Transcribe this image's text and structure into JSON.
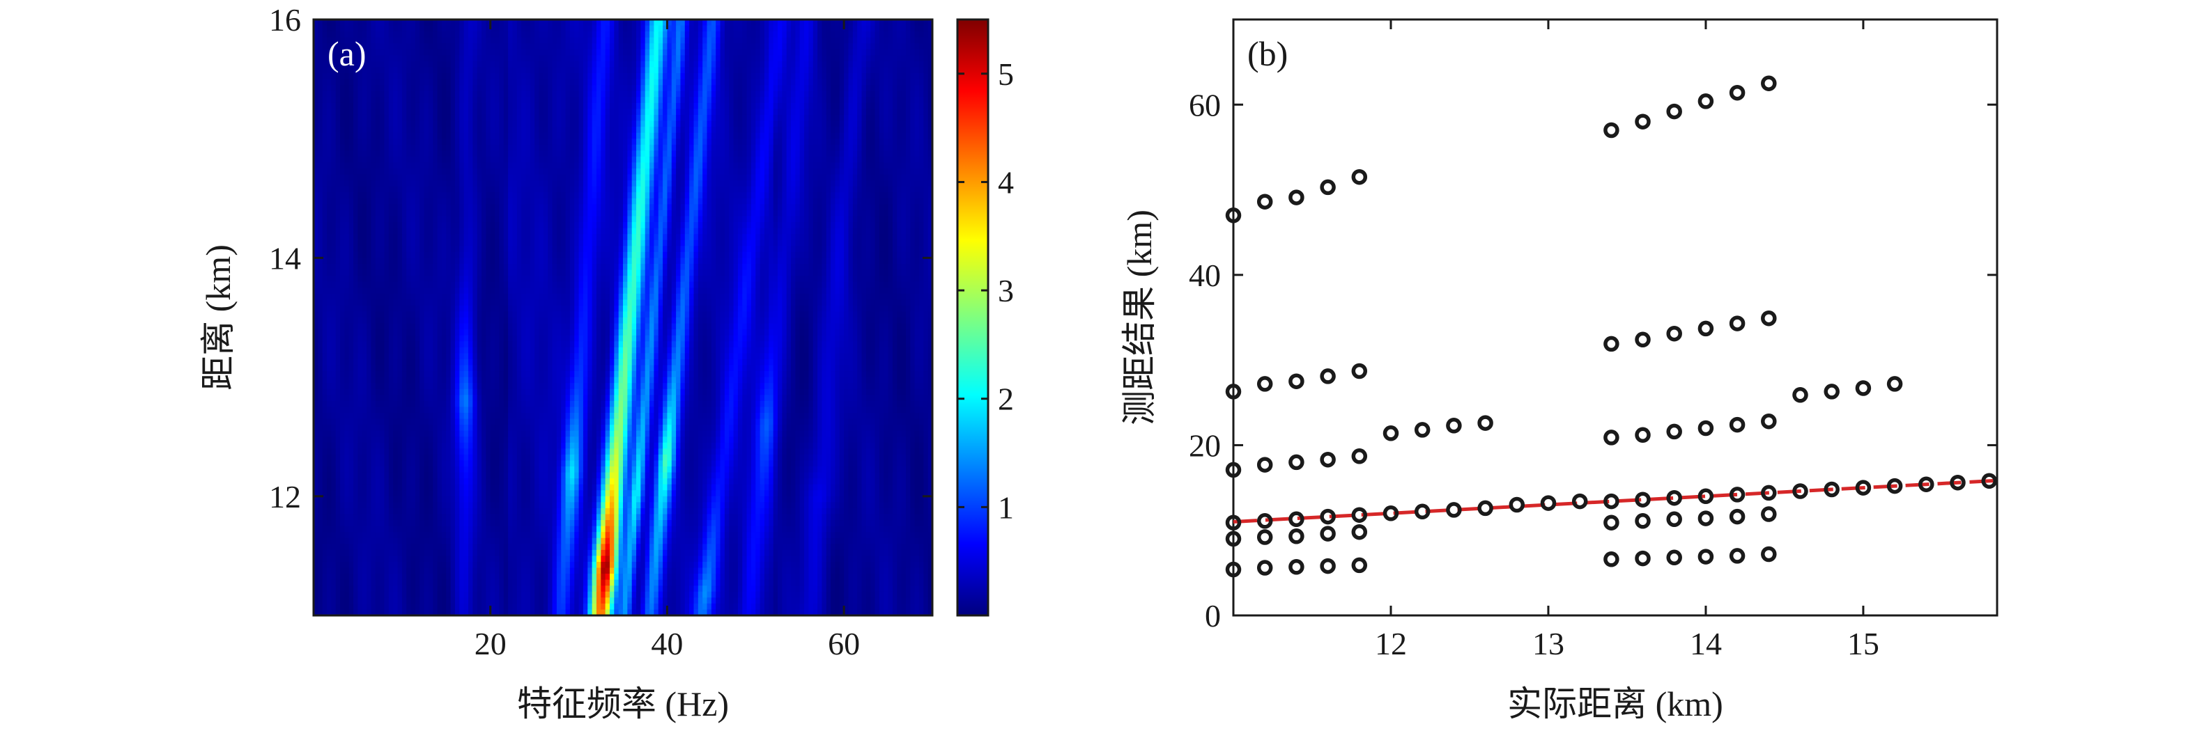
{
  "chart_data": [
    {
      "type": "heatmap",
      "panel_label": "(a)",
      "xlabel": "特征频率 (Hz)",
      "ylabel": "距离 (km)",
      "xlim": [
        0,
        70
      ],
      "ylim": [
        11,
        16
      ],
      "xticks": [
        20,
        40,
        60
      ],
      "yticks": [
        12,
        14,
        16
      ],
      "colorbar": {
        "range": [
          0,
          5.5
        ],
        "ticks": [
          1,
          2,
          3,
          4,
          5
        ],
        "colormap": "jet"
      },
      "ridges": [
        {
          "f_at_y11": 32.5,
          "f_at_y16": 39.0,
          "width": 0.9,
          "peak": 5.3,
          "peak_y": 11.4,
          "decay": 0.45,
          "base": 1.9
        },
        {
          "f_at_y11": 35.2,
          "f_at_y16": 41.6,
          "width": 0.55,
          "peak": 1.8,
          "peak_y": 12.0,
          "decay": 0.3,
          "base": 1.0
        },
        {
          "f_at_y11": 38.0,
          "f_at_y16": 45.2,
          "width": 0.7,
          "peak": 2.2,
          "peak_y": 12.3,
          "decay": 0.3,
          "base": 0.9
        },
        {
          "f_at_y11": 28.0,
          "f_at_y16": 33.0,
          "width": 0.8,
          "peak": 1.6,
          "peak_y": 12.2,
          "decay": 0.3,
          "base": 0.5
        },
        {
          "f_at_y11": 44.0,
          "f_at_y16": 53.0,
          "width": 0.8,
          "peak": 1.3,
          "peak_y": 11.2,
          "decay": 0.25,
          "base": 0.5
        },
        {
          "f_at_y11": 49.0,
          "f_at_y16": 56.0,
          "width": 0.9,
          "peak": 0.9,
          "peak_y": 12.6,
          "decay": 0.2,
          "base": 0.4
        },
        {
          "f_at_y11": 56.0,
          "f_at_y16": 62.0,
          "width": 1.0,
          "peak": 0.6,
          "peak_y": 12.0,
          "decay": 0.1,
          "base": 0.3
        },
        {
          "f_at_y11": 17.0,
          "f_at_y16": 17.5,
          "width": 0.8,
          "peak": 1.2,
          "peak_y": 12.8,
          "decay": 0.3,
          "base": 0.2
        }
      ]
    },
    {
      "type": "scatter",
      "panel_label": "(b)",
      "xlabel": "实际距离 (km)",
      "ylabel": "测距结果 (km)",
      "xlim": [
        11.0,
        15.85
      ],
      "ylim": [
        0,
        70
      ],
      "xticks": [
        12,
        13,
        14,
        15
      ],
      "yticks": [
        0,
        20,
        40,
        60
      ],
      "points": [
        [
          11.0,
          47.0
        ],
        [
          11.2,
          48.6
        ],
        [
          11.4,
          49.1
        ],
        [
          11.6,
          50.3
        ],
        [
          11.8,
          51.5
        ],
        [
          11.0,
          26.3
        ],
        [
          11.2,
          27.2
        ],
        [
          11.4,
          27.5
        ],
        [
          11.6,
          28.1
        ],
        [
          11.8,
          28.7
        ],
        [
          11.0,
          17.1
        ],
        [
          11.2,
          17.7
        ],
        [
          11.4,
          18.0
        ],
        [
          11.6,
          18.3
        ],
        [
          11.8,
          18.7
        ],
        [
          11.0,
          10.9
        ],
        [
          11.2,
          11.1
        ],
        [
          11.4,
          11.3
        ],
        [
          11.6,
          11.6
        ],
        [
          11.8,
          11.8
        ],
        [
          11.0,
          9.0
        ],
        [
          11.2,
          9.2
        ],
        [
          11.4,
          9.3
        ],
        [
          11.6,
          9.6
        ],
        [
          11.8,
          9.8
        ],
        [
          11.0,
          5.4
        ],
        [
          11.2,
          5.6
        ],
        [
          11.4,
          5.7
        ],
        [
          11.6,
          5.8
        ],
        [
          11.8,
          5.9
        ],
        [
          12.0,
          21.4
        ],
        [
          12.2,
          21.8
        ],
        [
          12.4,
          22.3
        ],
        [
          12.6,
          22.6
        ],
        [
          12.0,
          12.0
        ],
        [
          12.2,
          12.2
        ],
        [
          12.4,
          12.4
        ],
        [
          12.6,
          12.6
        ],
        [
          12.8,
          13.0
        ],
        [
          13.0,
          13.2
        ],
        [
          13.2,
          13.4
        ],
        [
          13.4,
          57.0
        ],
        [
          13.6,
          58.0
        ],
        [
          13.8,
          59.2
        ],
        [
          14.0,
          60.4
        ],
        [
          14.2,
          61.4
        ],
        [
          14.4,
          62.5
        ],
        [
          13.4,
          31.9
        ],
        [
          13.6,
          32.4
        ],
        [
          13.8,
          33.1
        ],
        [
          14.0,
          33.7
        ],
        [
          14.2,
          34.3
        ],
        [
          14.4,
          34.9
        ],
        [
          13.4,
          20.9
        ],
        [
          13.6,
          21.2
        ],
        [
          13.8,
          21.6
        ],
        [
          14.0,
          22.0
        ],
        [
          14.2,
          22.4
        ],
        [
          14.4,
          22.8
        ],
        [
          13.4,
          13.4
        ],
        [
          13.6,
          13.6
        ],
        [
          13.8,
          13.8
        ],
        [
          14.0,
          14.0
        ],
        [
          14.2,
          14.2
        ],
        [
          14.4,
          14.4
        ],
        [
          13.4,
          10.9
        ],
        [
          13.6,
          11.1
        ],
        [
          13.8,
          11.3
        ],
        [
          14.0,
          11.4
        ],
        [
          14.2,
          11.6
        ],
        [
          14.4,
          11.9
        ],
        [
          13.4,
          6.6
        ],
        [
          13.6,
          6.7
        ],
        [
          13.8,
          6.8
        ],
        [
          14.0,
          6.9
        ],
        [
          14.2,
          7.0
        ],
        [
          14.4,
          7.2
        ],
        [
          14.6,
          25.9
        ],
        [
          14.8,
          26.3
        ],
        [
          15.0,
          26.7
        ],
        [
          15.2,
          27.2
        ],
        [
          14.6,
          14.6
        ],
        [
          14.8,
          14.8
        ],
        [
          15.0,
          15.0
        ],
        [
          15.2,
          15.2
        ],
        [
          15.4,
          15.4
        ],
        [
          15.6,
          15.6
        ],
        [
          15.8,
          15.8
        ]
      ],
      "fit_line": {
        "x": [
          11.0,
          15.85
        ],
        "y": [
          11.0,
          15.85
        ]
      }
    }
  ]
}
